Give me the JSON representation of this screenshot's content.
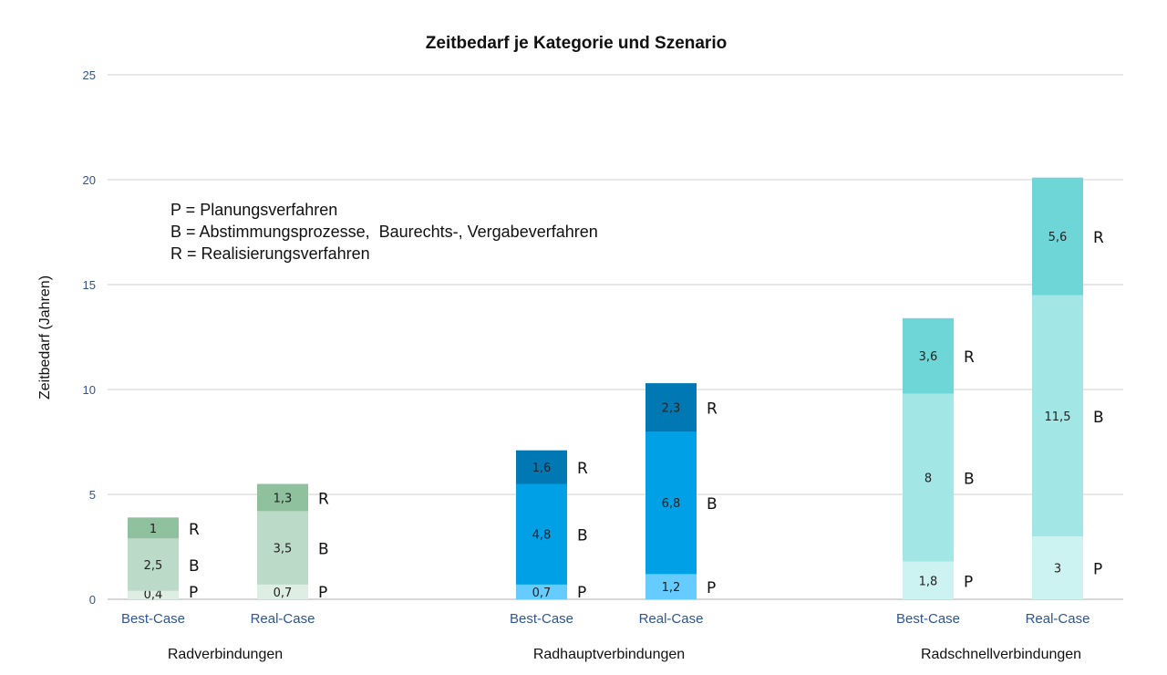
{
  "chart_data": {
    "type": "bar",
    "stacked": true,
    "title": "Zeitbedarf je Kategorie und Szenario",
    "ylabel": "Zeitbedarf (Jahren)",
    "xlabel": "",
    "ylim": [
      0,
      25
    ],
    "yticks": [
      0,
      5,
      10,
      15,
      20,
      25
    ],
    "grid": true,
    "legend_text": [
      "P = Planungsverfahren",
      "B = Abstimmungsprozesse,  Baurechts-, Vergabeverfahren",
      "R = Realisierungsverfahren"
    ],
    "groups": [
      {
        "name": "Radverbindungen",
        "colors": {
          "P": "#dfeee4",
          "B": "#bcdac8",
          "R": "#8fc19f"
        },
        "bars": [
          {
            "category": "Best-Case",
            "segments": [
              {
                "key": "P",
                "value": 0.4,
                "label": "0,4"
              },
              {
                "key": "B",
                "value": 2.5,
                "label": "2,5"
              },
              {
                "key": "R",
                "value": 1,
                "label": "1"
              }
            ]
          },
          {
            "category": "Real-Case",
            "segments": [
              {
                "key": "P",
                "value": 0.7,
                "label": "0,7"
              },
              {
                "key": "B",
                "value": 3.5,
                "label": "3,5"
              },
              {
                "key": "R",
                "value": 1.3,
                "label": "1,3"
              }
            ]
          }
        ]
      },
      {
        "name": "Radhauptverbindungen",
        "colors": {
          "P": "#66ccff",
          "B": "#00a0e6",
          "R": "#0078b4"
        },
        "bars": [
          {
            "category": "Best-Case",
            "segments": [
              {
                "key": "P",
                "value": 0.7,
                "label": "0,7"
              },
              {
                "key": "B",
                "value": 4.8,
                "label": "4,8"
              },
              {
                "key": "R",
                "value": 1.6,
                "label": "1,6"
              }
            ]
          },
          {
            "category": "Real-Case",
            "segments": [
              {
                "key": "P",
                "value": 1.2,
                "label": "1,2"
              },
              {
                "key": "B",
                "value": 6.8,
                "label": "6,8"
              },
              {
                "key": "R",
                "value": 2.3,
                "label": "2,3"
              }
            ]
          }
        ]
      },
      {
        "name": "Radschnellverbindungen",
        "colors": {
          "P": "#cdf2f2",
          "B": "#a3e6e6",
          "R": "#6fd6d8"
        },
        "bars": [
          {
            "category": "Best-Case",
            "segments": [
              {
                "key": "P",
                "value": 1.8,
                "label": "1,8"
              },
              {
                "key": "B",
                "value": 8,
                "label": "8"
              },
              {
                "key": "R",
                "value": 3.6,
                "label": "3,6"
              }
            ]
          },
          {
            "category": "Real-Case",
            "segments": [
              {
                "key": "P",
                "value": 3,
                "label": "3"
              },
              {
                "key": "B",
                "value": 11.5,
                "label": "11,5"
              },
              {
                "key": "R",
                "value": 5.6,
                "label": "5,6"
              }
            ]
          }
        ]
      }
    ],
    "colors": {
      "tick_label": "#2f5597",
      "gridline": "#d9d9d9",
      "axis": "#bfbfbf"
    }
  }
}
